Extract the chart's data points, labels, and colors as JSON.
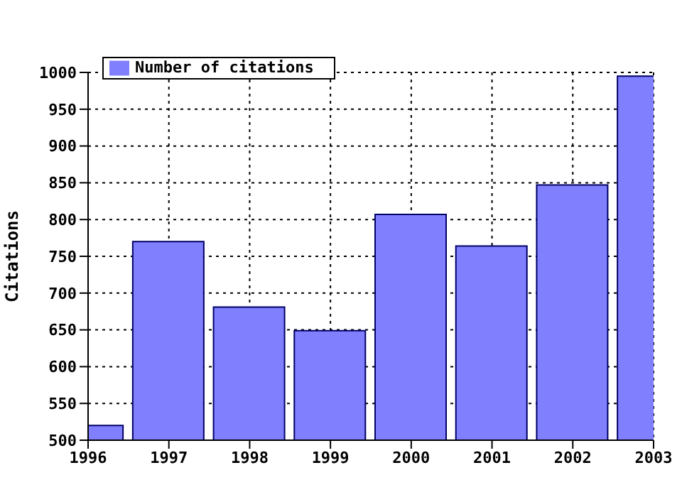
{
  "chart_data": {
    "type": "bar",
    "ylabel": "Citations",
    "x": [
      1996,
      1997,
      1998,
      1999,
      2000,
      2001,
      2002,
      2003
    ],
    "series": [
      {
        "name": "Number of citations",
        "color": "#8080ff",
        "values": [
          520,
          770,
          681,
          649,
          807,
          764,
          847,
          995
        ]
      }
    ],
    "xlim": [
      1996,
      2003
    ],
    "xticks": [
      1996,
      1997,
      1998,
      1999,
      2000,
      2001,
      2002,
      2003
    ],
    "ylim": [
      500,
      1000
    ],
    "yticks": [
      500,
      550,
      600,
      650,
      700,
      750,
      800,
      850,
      900,
      950,
      1000
    ],
    "grid": true,
    "legend": "top left"
  }
}
